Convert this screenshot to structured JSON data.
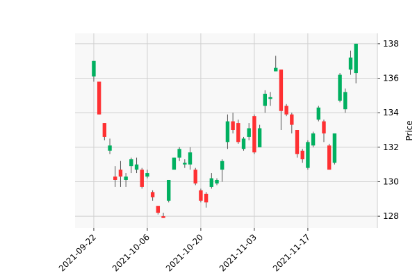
{
  "chart_data": {
    "type": "candlestick",
    "ylabel": "Price",
    "up_color": "#00b060",
    "down_color": "#fe3032",
    "wick_color": "#555555",
    "background": "#f8f8f8",
    "grid": true,
    "open": [
      136.1,
      135.8,
      133.4,
      131.8,
      130.3,
      130.7,
      130.1,
      130.9,
      130.7,
      130.7,
      130.3,
      129.4,
      128.6,
      128.0,
      128.9,
      130.7,
      131.4,
      131.0,
      131.0,
      130.7,
      129.5,
      129.3,
      129.7,
      129.9,
      130.7,
      132.3,
      133.5,
      133.4,
      131.9,
      132.6,
      133.8,
      132.0,
      134.4,
      134.8,
      136.4,
      136.5,
      134.4,
      133.9,
      133.0,
      131.8,
      130.8,
      132.1,
      133.6,
      133.5,
      132.1,
      131.1,
      134.7,
      134.2,
      136.5,
      136.3
    ],
    "high": [
      137.0,
      135.8,
      133.4,
      132.5,
      130.9,
      131.2,
      130.5,
      131.4,
      131.4,
      130.8,
      130.7,
      129.5,
      128.6,
      128.2,
      130.1,
      131.4,
      132.0,
      131.3,
      132.0,
      130.8,
      129.6,
      129.4,
      130.5,
      130.2,
      131.3,
      133.9,
      134.0,
      133.6,
      132.6,
      133.4,
      133.9,
      133.3,
      135.3,
      135.2,
      137.3,
      136.5,
      134.5,
      134.0,
      133.0,
      131.9,
      132.4,
      132.9,
      134.4,
      133.6,
      132.2,
      132.8,
      136.3,
      135.4,
      137.6,
      138.0
    ],
    "low": [
      135.8,
      133.9,
      132.4,
      131.6,
      129.7,
      129.7,
      129.7,
      130.5,
      130.5,
      129.6,
      130.2,
      128.9,
      128.1,
      127.9,
      128.8,
      130.7,
      131.2,
      130.8,
      130.7,
      129.8,
      128.8,
      128.5,
      129.6,
      129.8,
      130.0,
      131.9,
      132.8,
      132.2,
      131.8,
      132.4,
      131.6,
      132.0,
      134.0,
      134.4,
      136.4,
      133.0,
      133.8,
      132.8,
      131.4,
      131.1,
      130.7,
      132.0,
      133.5,
      132.3,
      130.7,
      131.0,
      134.6,
      134.0,
      136.2,
      135.7
    ],
    "close": [
      137.0,
      133.9,
      132.6,
      132.1,
      130.1,
      130.3,
      130.3,
      131.3,
      131.0,
      129.7,
      130.5,
      129.1,
      128.2,
      127.9,
      130.1,
      131.4,
      131.9,
      131.1,
      131.7,
      129.9,
      128.9,
      128.8,
      130.2,
      130.1,
      131.2,
      133.5,
      133.0,
      132.3,
      132.5,
      133.1,
      131.7,
      133.1,
      135.1,
      134.9,
      136.6,
      134.1,
      133.9,
      133.3,
      131.6,
      131.3,
      132.3,
      132.8,
      134.3,
      132.8,
      130.7,
      132.8,
      136.2,
      135.2,
      137.2,
      138.0
    ],
    "xlim": [
      -3.5,
      53
    ],
    "xticks": [
      {
        "value": 0,
        "label": "2021-09-22"
      },
      {
        "value": 10,
        "label": "2021-10-06"
      },
      {
        "value": 20,
        "label": "2021-10-20"
      },
      {
        "value": 30,
        "label": "2021-11-03"
      },
      {
        "value": 40,
        "label": "2021-11-17"
      }
    ],
    "ylim": [
      127.32,
      138.6
    ],
    "yticks": [
      128,
      130,
      132,
      134,
      136,
      138
    ]
  }
}
